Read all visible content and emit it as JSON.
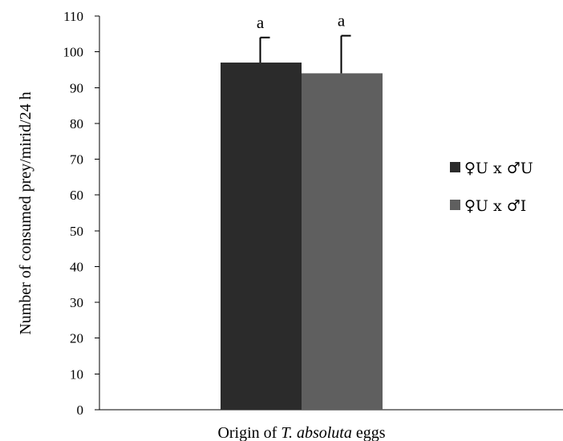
{
  "chart_data": {
    "type": "bar",
    "categories": [
      ""
    ],
    "series": [
      {
        "name": "♀U x ♂U",
        "values": [
          97
        ],
        "error": [
          7
        ],
        "color": "#2b2b2b",
        "label": "a"
      },
      {
        "name": "♀U x ♂I",
        "values": [
          94
        ],
        "error": [
          10.5
        ],
        "color": "#5f5f5f",
        "label": "a"
      }
    ],
    "ylabel": "Number of consumed prey/mirid/24 h",
    "xlabel": {
      "prefix": "Origin of ",
      "italic": "T. absoluta",
      "suffix": " eggs"
    },
    "ylim": [
      0,
      110
    ],
    "yticks": [
      0,
      10,
      20,
      30,
      40,
      50,
      60,
      70,
      80,
      90,
      100,
      110
    ],
    "grid": false,
    "legend_position": "right"
  }
}
